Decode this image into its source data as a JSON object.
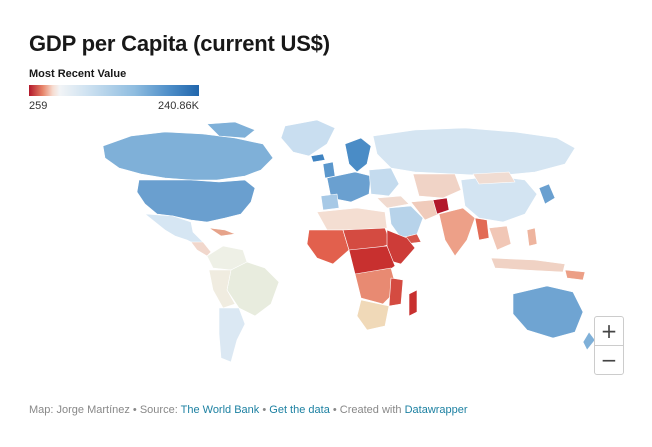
{
  "header": {
    "title": "GDP per Capita (current US$)"
  },
  "legend": {
    "title": "Most Recent Value",
    "min_label": "259",
    "max_label": "240.86K",
    "colors": {
      "low": "#b2182b",
      "mid": "#f2f4f6",
      "high": "#2166ac"
    }
  },
  "zoom": {
    "in_label": "+",
    "out_label": "−",
    "in_icon": "plus-icon",
    "out_icon": "minus-icon"
  },
  "footer": {
    "map_credit": "Map: Jorge Martínez",
    "sep1": " • ",
    "source_label": "Source: ",
    "source_link": "The World Bank",
    "sep2": " • ",
    "data_link": "Get the data",
    "sep3": " • ",
    "created_label": "Created with ",
    "created_link": "Datawrapper"
  }
}
